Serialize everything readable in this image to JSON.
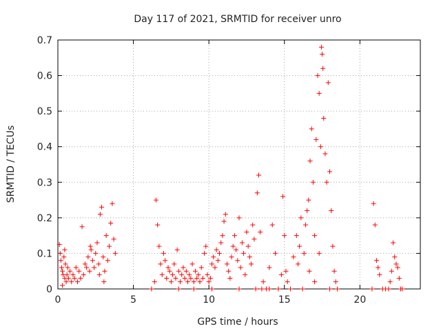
{
  "chart_data": {
    "type": "scatter",
    "title": "Day 117 of 2021, SRMTID for receiver unro",
    "xlabel": "GPS time / hours",
    "ylabel": "SRMTID / TECUs",
    "xlim": [
      0,
      24
    ],
    "ylim": [
      0,
      0.7
    ],
    "xticks": [
      0,
      5,
      10,
      15,
      20
    ],
    "yticks": [
      0,
      0.1,
      0.2,
      0.3,
      0.4,
      0.5,
      0.6,
      0.7
    ],
    "ytick_labels": [
      "0",
      "0.1",
      "0.2",
      "0.3",
      "0.4",
      "0.5",
      "0.6",
      "0.7"
    ],
    "grid": true,
    "marker": "+",
    "color": "#ff0000",
    "series": [
      {
        "name": "SRMTID",
        "points": [
          [
            0.1,
            0.125
          ],
          [
            0.15,
            0.1
          ],
          [
            0.2,
            0.08
          ],
          [
            0.25,
            0.06
          ],
          [
            0.3,
            0.05
          ],
          [
            0.35,
            0.04
          ],
          [
            0.4,
            0.09
          ],
          [
            0.45,
            0.03
          ],
          [
            0.5,
            0.07
          ],
          [
            0.55,
            0.02
          ],
          [
            0.6,
            0.04
          ],
          [
            0.65,
            0.06
          ],
          [
            0.7,
            0.03
          ],
          [
            0.8,
            0.05
          ],
          [
            0.9,
            0.02
          ],
          [
            1.0,
            0.04
          ],
          [
            1.1,
            0.03
          ],
          [
            1.2,
            0.06
          ],
          [
            1.3,
            0.02
          ],
          [
            1.4,
            0.05
          ],
          [
            1.5,
            0.03
          ],
          [
            1.6,
            0.175
          ],
          [
            1.7,
            0.04
          ],
          [
            1.8,
            0.07
          ],
          [
            1.9,
            0.06
          ],
          [
            2.0,
            0.09
          ],
          [
            2.1,
            0.05
          ],
          [
            2.2,
            0.11
          ],
          [
            2.3,
            0.08
          ],
          [
            2.4,
            0.06
          ],
          [
            2.5,
            0.1
          ],
          [
            2.6,
            0.13
          ],
          [
            2.7,
            0.07
          ],
          [
            2.8,
            0.21
          ],
          [
            2.9,
            0.23
          ],
          [
            3.0,
            0.09
          ],
          [
            3.1,
            0.05
          ],
          [
            3.2,
            0.15
          ],
          [
            3.3,
            0.08
          ],
          [
            3.4,
            0.12
          ],
          [
            3.5,
            0.185
          ],
          [
            3.6,
            0.24
          ],
          [
            3.7,
            0.14
          ],
          [
            3.8,
            0.1
          ],
          [
            2.75,
            0.04
          ],
          [
            3.05,
            0.02
          ],
          [
            2.15,
            0.12
          ],
          [
            0.3,
            0.01
          ],
          [
            0.45,
            0.11
          ],
          [
            6.2,
            0.0
          ],
          [
            6.4,
            0.02
          ],
          [
            6.5,
            0.25
          ],
          [
            6.6,
            0.18
          ],
          [
            6.7,
            0.12
          ],
          [
            6.8,
            0.07
          ],
          [
            6.9,
            0.04
          ],
          [
            7.0,
            0.1
          ],
          [
            7.1,
            0.08
          ],
          [
            7.2,
            0.03
          ],
          [
            7.3,
            0.06
          ],
          [
            7.4,
            0.05
          ],
          [
            7.5,
            0.02
          ],
          [
            7.6,
            0.04
          ],
          [
            7.7,
            0.07
          ],
          [
            7.8,
            0.03
          ],
          [
            7.9,
            0.11
          ],
          [
            8.0,
            0.05
          ],
          [
            8.1,
            0.02
          ],
          [
            8.2,
            0.04
          ],
          [
            8.3,
            0.06
          ],
          [
            8.4,
            0.03
          ],
          [
            8.5,
            0.05
          ],
          [
            8.6,
            0.02
          ],
          [
            8.7,
            0.04
          ],
          [
            8.8,
            0.03
          ],
          [
            8.9,
            0.07
          ],
          [
            9.0,
            0.02
          ],
          [
            9.1,
            0.05
          ],
          [
            9.2,
            0.03
          ],
          [
            9.3,
            0.04
          ],
          [
            9.4,
            0.02
          ],
          [
            9.5,
            0.06
          ],
          [
            9.6,
            0.03
          ],
          [
            9.7,
            0.1
          ],
          [
            9.8,
            0.12
          ],
          [
            9.9,
            0.04
          ],
          [
            10.0,
            0.02
          ],
          [
            10.1,
            0.03
          ],
          [
            10.2,
            0.07
          ],
          [
            10.3,
            0.09
          ],
          [
            10.4,
            0.06
          ],
          [
            10.5,
            0.11
          ],
          [
            10.6,
            0.08
          ],
          [
            10.7,
            0.1
          ],
          [
            10.8,
            0.13
          ],
          [
            10.9,
            0.15
          ],
          [
            11.0,
            0.19
          ],
          [
            11.1,
            0.21
          ],
          [
            11.2,
            0.07
          ],
          [
            11.3,
            0.05
          ],
          [
            11.4,
            0.03
          ],
          [
            11.5,
            0.09
          ],
          [
            11.6,
            0.12
          ],
          [
            11.7,
            0.15
          ],
          [
            11.8,
            0.11
          ],
          [
            11.9,
            0.08
          ],
          [
            12.0,
            0.2
          ],
          [
            12.1,
            0.06
          ],
          [
            12.2,
            0.13
          ],
          [
            12.3,
            0.1
          ],
          [
            12.4,
            0.04
          ],
          [
            12.5,
            0.16
          ],
          [
            12.6,
            0.12
          ],
          [
            12.7,
            0.09
          ],
          [
            12.8,
            0.07
          ],
          [
            12.9,
            0.18
          ],
          [
            13.0,
            0.14
          ],
          [
            13.1,
            0.0
          ],
          [
            13.2,
            0.27
          ],
          [
            13.3,
            0.32
          ],
          [
            13.4,
            0.16
          ],
          [
            13.5,
            0.0
          ],
          [
            13.6,
            0.02
          ],
          [
            13.8,
            0.0
          ],
          [
            14.0,
            0.06
          ],
          [
            14.2,
            0.18
          ],
          [
            14.4,
            0.1
          ],
          [
            14.6,
            0.0
          ],
          [
            14.8,
            0.04
          ],
          [
            14.9,
            0.26
          ],
          [
            15.0,
            0.15
          ],
          [
            15.1,
            0.05
          ],
          [
            15.2,
            0.02
          ],
          [
            15.4,
            0.0
          ],
          [
            15.6,
            0.09
          ],
          [
            15.8,
            0.15
          ],
          [
            15.9,
            0.07
          ],
          [
            16.0,
            0.12
          ],
          [
            16.1,
            0.2
          ],
          [
            16.2,
            0.0
          ],
          [
            16.3,
            0.1
          ],
          [
            16.4,
            0.18
          ],
          [
            16.5,
            0.22
          ],
          [
            16.6,
            0.25
          ],
          [
            16.7,
            0.36
          ],
          [
            16.8,
            0.45
          ],
          [
            16.9,
            0.3
          ],
          [
            17.0,
            0.15
          ],
          [
            17.1,
            0.42
          ],
          [
            17.2,
            0.6
          ],
          [
            17.3,
            0.55
          ],
          [
            17.4,
            0.4
          ],
          [
            17.45,
            0.68
          ],
          [
            17.5,
            0.66
          ],
          [
            17.55,
            0.62
          ],
          [
            17.6,
            0.48
          ],
          [
            17.7,
            0.38
          ],
          [
            17.8,
            0.3
          ],
          [
            17.9,
            0.58
          ],
          [
            18.0,
            0.33
          ],
          [
            18.1,
            0.22
          ],
          [
            18.2,
            0.12
          ],
          [
            18.3,
            0.05
          ],
          [
            18.4,
            0.02
          ],
          [
            16.65,
            0.05
          ],
          [
            17.0,
            0.02
          ],
          [
            17.3,
            0.1
          ],
          [
            18.0,
            0.0
          ],
          [
            18.5,
            0.0
          ],
          [
            10.2,
            0.0
          ],
          [
            9.0,
            0.0
          ],
          [
            8.0,
            0.0
          ],
          [
            12.0,
            0.0
          ],
          [
            14.0,
            0.0
          ],
          [
            20.8,
            0.0
          ],
          [
            20.9,
            0.24
          ],
          [
            21.0,
            0.18
          ],
          [
            21.1,
            0.08
          ],
          [
            21.2,
            0.06
          ],
          [
            21.3,
            0.04
          ],
          [
            21.5,
            0.0
          ],
          [
            21.7,
            0.0
          ],
          [
            21.9,
            0.0
          ],
          [
            22.0,
            0.02
          ],
          [
            22.1,
            0.05
          ],
          [
            22.2,
            0.13
          ],
          [
            22.3,
            0.09
          ],
          [
            22.4,
            0.07
          ],
          [
            22.5,
            0.06
          ],
          [
            22.6,
            0.03
          ],
          [
            22.7,
            0.0
          ],
          [
            22.8,
            0.0
          ]
        ]
      }
    ]
  }
}
